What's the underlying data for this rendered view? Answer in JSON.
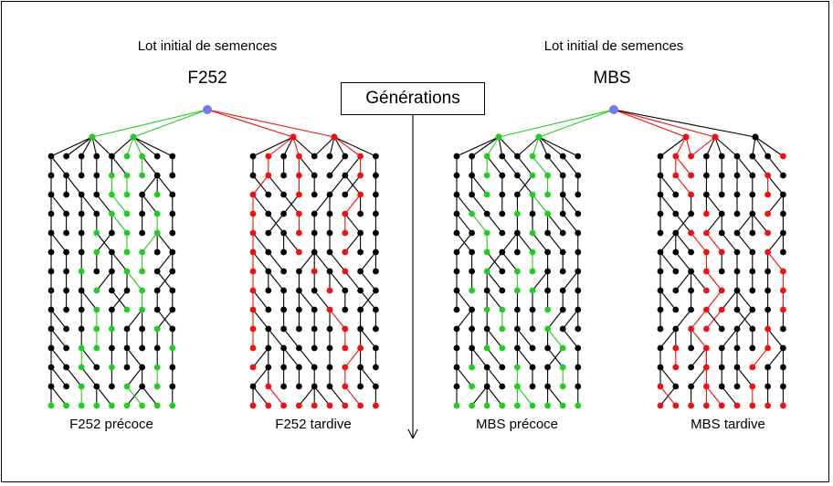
{
  "left": {
    "heading": "Lot initial de semences",
    "variety": "F252",
    "early_label": "F252 précoce",
    "late_label": "F252 tardive"
  },
  "right": {
    "heading": "Lot initial de semences",
    "variety": "MBS",
    "early_label": "MBS précoce",
    "late_label": "MBS tardive"
  },
  "center": {
    "generations_label": "Générations"
  },
  "colors": {
    "early": "#22cc22",
    "late": "#ee1111",
    "neutral": "#000000",
    "root": "#7777ee"
  }
}
